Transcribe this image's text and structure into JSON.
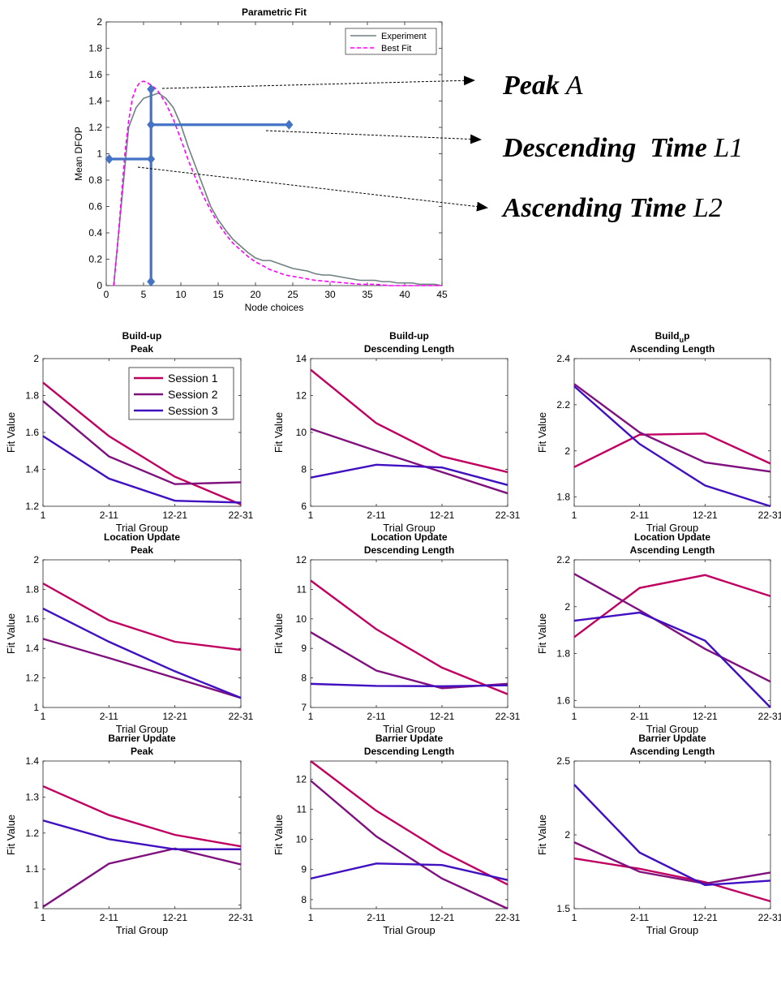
{
  "annotations": [
    {
      "bold": "Peak",
      "rest": "A"
    },
    {
      "bold": "Descending  Time",
      "rest": "L1"
    },
    {
      "bold": "Ascending Time",
      "rest": "L2"
    }
  ],
  "colors": {
    "experiment": "#6e7f80",
    "best_fit": "#ff00ff",
    "marker": "#4472c4",
    "session_1": "#c00060",
    "session_2": "#80107e",
    "session_3": "#4010c0"
  },
  "chart_data": [
    {
      "id": "parametric",
      "type": "line",
      "title": "Parametric Fit",
      "xlabel": "Node choices",
      "ylabel": "Mean DFOP",
      "xlim": [
        0,
        45
      ],
      "ylim": [
        0,
        2
      ],
      "xticks": [
        0,
        5,
        10,
        15,
        20,
        25,
        30,
        35,
        40,
        45
      ],
      "yticks": [
        0,
        0.2,
        0.4,
        0.6,
        0.8,
        1,
        1.2,
        1.4,
        1.6,
        1.8,
        2
      ],
      "ytick_labels": [
        "0",
        "0.2",
        "0.4",
        "0.6",
        "0.8",
        "1",
        "1.2",
        "1.4",
        "1.6",
        "1.8",
        "2"
      ],
      "legend": "top-right",
      "series": [
        {
          "name": "Experiment",
          "style": "solid",
          "x": [
            1,
            2,
            3,
            4,
            5,
            6,
            7,
            8,
            9,
            10,
            11,
            12,
            13,
            14,
            15,
            16,
            17,
            18,
            19,
            20,
            21,
            22,
            23,
            24,
            25,
            26,
            27,
            28,
            29,
            30,
            31,
            32,
            33,
            34,
            35,
            36,
            37,
            38,
            39,
            40,
            41,
            42,
            43,
            44,
            45
          ],
          "y": [
            0.0,
            0.6,
            1.2,
            1.35,
            1.42,
            1.44,
            1.46,
            1.42,
            1.35,
            1.22,
            1.05,
            0.9,
            0.75,
            0.6,
            0.5,
            0.42,
            0.35,
            0.3,
            0.25,
            0.21,
            0.19,
            0.19,
            0.17,
            0.15,
            0.13,
            0.12,
            0.11,
            0.09,
            0.08,
            0.08,
            0.07,
            0.06,
            0.05,
            0.04,
            0.04,
            0.04,
            0.03,
            0.03,
            0.02,
            0.02,
            0.02,
            0.01,
            0.01,
            0.01,
            0.0
          ]
        },
        {
          "name": "Best Fit",
          "style": "dashed",
          "x": [
            1,
            1.5,
            2,
            2.5,
            3,
            3.5,
            4,
            4.5,
            5,
            5.5,
            6,
            6.5,
            7,
            8,
            9,
            10,
            11,
            12,
            13,
            14,
            15,
            16,
            17,
            18,
            19,
            20,
            21,
            22,
            23,
            24,
            25,
            26,
            28,
            30,
            32,
            34,
            36,
            38,
            40,
            42,
            45
          ],
          "y": [
            0.0,
            0.3,
            0.65,
            1.0,
            1.25,
            1.42,
            1.5,
            1.54,
            1.55,
            1.54,
            1.52,
            1.5,
            1.47,
            1.38,
            1.26,
            1.11,
            0.95,
            0.81,
            0.68,
            0.57,
            0.47,
            0.39,
            0.32,
            0.27,
            0.22,
            0.18,
            0.15,
            0.12,
            0.1,
            0.08,
            0.07,
            0.06,
            0.04,
            0.03,
            0.02,
            0.01,
            0.01,
            0.0,
            0.0,
            0.0,
            0.0
          ]
        }
      ],
      "markers": {
        "vertical": {
          "x": 6,
          "y0": 0.03,
          "y1": 1.49
        },
        "descending": {
          "y": 1.22,
          "x0": 6,
          "x1": 24.5
        },
        "ascending": {
          "y": 0.96,
          "x0": 0.4,
          "x1": 6
        }
      }
    },
    {
      "id": "buildup-peak",
      "type": "line",
      "title": [
        "Build-up",
        "Peak"
      ],
      "xlabel": "Trial Group",
      "ylabel": "Fit Value",
      "categories": [
        "1",
        "2-11",
        "12-21",
        "22-31"
      ],
      "ylim": [
        1.2,
        2
      ],
      "yticks": [
        1.2,
        1.4,
        1.6,
        1.8,
        2
      ],
      "ytick_labels": [
        "1.2",
        "1.4",
        "1.6",
        "1.8",
        "2"
      ],
      "legend": "top-right",
      "series": [
        {
          "name": "Session 1",
          "values": [
            1.87,
            1.58,
            1.36,
            1.21
          ]
        },
        {
          "name": "Session 2",
          "values": [
            1.77,
            1.47,
            1.32,
            1.33
          ]
        },
        {
          "name": "Session 3",
          "values": [
            1.58,
            1.35,
            1.23,
            1.22
          ]
        }
      ]
    },
    {
      "id": "buildup-desc",
      "type": "line",
      "title": [
        "Build-up",
        "Descending Length"
      ],
      "xlabel": "Trial Group",
      "ylabel": "Fit Value",
      "categories": [
        "1",
        "2-11",
        "12-21",
        "22-31"
      ],
      "ylim": [
        6,
        14
      ],
      "yticks": [
        6,
        8,
        10,
        12,
        14
      ],
      "ytick_labels": [
        "6",
        "8",
        "10",
        "12",
        "14"
      ],
      "series": [
        {
          "values": [
            13.4,
            10.5,
            8.7,
            7.85
          ]
        },
        {
          "values": [
            10.2,
            9.0,
            7.85,
            6.7
          ]
        },
        {
          "values": [
            7.55,
            8.25,
            8.1,
            7.15
          ]
        }
      ]
    },
    {
      "id": "buildup-asc",
      "type": "line",
      "title": [
        "Build",
        "u",
        "p",
        "Ascending Length"
      ],
      "xlabel": "Trial Group",
      "ylabel": "Fit Value",
      "categories": [
        "1",
        "2-11",
        "12-21",
        "22-31"
      ],
      "ylim": [
        1.76,
        2.4
      ],
      "yticks": [
        1.8,
        2.0,
        2.2,
        2.4
      ],
      "ytick_labels": [
        "1.8",
        "2",
        "2.2",
        "2.4"
      ],
      "series": [
        {
          "values": [
            1.93,
            2.07,
            2.075,
            1.945
          ]
        },
        {
          "values": [
            2.29,
            2.08,
            1.95,
            1.91
          ]
        },
        {
          "values": [
            2.28,
            2.03,
            1.85,
            1.76
          ]
        }
      ]
    },
    {
      "id": "location-peak",
      "type": "line",
      "title": [
        "Location Update",
        "Peak"
      ],
      "xlabel": "Trial Group",
      "ylabel": "Fit Value",
      "categories": [
        "1",
        "2-11",
        "12-21",
        "22-31"
      ],
      "ylim": [
        1,
        2
      ],
      "yticks": [
        1,
        1.2,
        1.4,
        1.6,
        1.8,
        2
      ],
      "ytick_labels": [
        "1",
        "1.2",
        "1.4",
        "1.6",
        "1.8",
        "2"
      ],
      "series": [
        {
          "values": [
            1.84,
            1.59,
            1.445,
            1.39
          ]
        },
        {
          "values": [
            1.465,
            1.335,
            1.2,
            1.065
          ]
        },
        {
          "values": [
            1.67,
            1.445,
            1.245,
            1.065
          ]
        }
      ]
    },
    {
      "id": "location-desc",
      "type": "line",
      "title": [
        "Location Update",
        "Descending Length"
      ],
      "xlabel": "Trial Group",
      "ylabel": "Fit Value",
      "categories": [
        "1",
        "2-11",
        "12-21",
        "22-31"
      ],
      "ylim": [
        7,
        12
      ],
      "yticks": [
        7,
        8,
        9,
        10,
        11,
        12
      ],
      "ytick_labels": [
        "7",
        "8",
        "9",
        "10",
        "11",
        "12"
      ],
      "series": [
        {
          "values": [
            11.3,
            9.65,
            8.35,
            7.45
          ]
        },
        {
          "values": [
            9.55,
            8.25,
            7.65,
            7.8
          ]
        },
        {
          "values": [
            7.8,
            7.73,
            7.72,
            7.75
          ]
        }
      ]
    },
    {
      "id": "location-asc",
      "type": "line",
      "title": [
        "Location Update",
        "Ascending Length"
      ],
      "xlabel": "Trial Group",
      "ylabel": "Fit Value",
      "categories": [
        "1",
        "2-11",
        "12-21",
        "22-31"
      ],
      "ylim": [
        1.57,
        2.2
      ],
      "yticks": [
        1.6,
        1.8,
        2.0,
        2.2
      ],
      "ytick_labels": [
        "1.6",
        "1.8",
        "2",
        "2.2"
      ],
      "series": [
        {
          "values": [
            1.87,
            2.08,
            2.135,
            2.045
          ]
        },
        {
          "values": [
            2.14,
            1.985,
            1.82,
            1.68
          ]
        },
        {
          "values": [
            1.94,
            1.975,
            1.855,
            1.57
          ]
        }
      ]
    },
    {
      "id": "barrier-peak",
      "type": "line",
      "title": [
        "Barrier Update",
        "Peak"
      ],
      "xlabel": "Trial Group",
      "ylabel": "Fit Value",
      "categories": [
        "1",
        "2-11",
        "12-21",
        "22-31"
      ],
      "ylim": [
        0.99,
        1.4
      ],
      "yticks": [
        1.0,
        1.1,
        1.2,
        1.3,
        1.4
      ],
      "ytick_labels": [
        "1",
        "1.1",
        "1.2",
        "1.3",
        "1.4"
      ],
      "series": [
        {
          "values": [
            1.33,
            1.25,
            1.195,
            1.163
          ]
        },
        {
          "values": [
            0.995,
            1.115,
            1.157,
            1.113
          ]
        },
        {
          "values": [
            1.235,
            1.183,
            1.155,
            1.155
          ]
        }
      ]
    },
    {
      "id": "barrier-desc",
      "type": "line",
      "title": [
        "Barrier Update",
        "Descending Length"
      ],
      "xlabel": "Trial Group",
      "ylabel": "Fit Value",
      "categories": [
        "1",
        "2-11",
        "12-21",
        "22-31"
      ],
      "ylim": [
        7.7,
        12.6
      ],
      "yticks": [
        8,
        9,
        10,
        11,
        12
      ],
      "ytick_labels": [
        "8",
        "9",
        "10",
        "11",
        "12"
      ],
      "series": [
        {
          "values": [
            12.6,
            10.95,
            9.6,
            8.5
          ]
        },
        {
          "values": [
            11.95,
            10.1,
            8.7,
            7.7
          ]
        },
        {
          "values": [
            8.7,
            9.2,
            9.15,
            8.65
          ]
        }
      ]
    },
    {
      "id": "barrier-asc",
      "type": "line",
      "title": [
        "Barrier Update",
        "Ascending Length"
      ],
      "xlabel": "Trial Group",
      "ylabel": "Fit Value",
      "categories": [
        "1",
        "2-11",
        "12-21",
        "22-31"
      ],
      "ylim": [
        1.5,
        2.5
      ],
      "yticks": [
        1.5,
        2.0,
        2.5
      ],
      "ytick_labels": [
        "1.5",
        "2",
        "2.5"
      ],
      "series": [
        {
          "values": [
            1.84,
            1.77,
            1.68,
            1.55
          ]
        },
        {
          "values": [
            1.95,
            1.75,
            1.67,
            1.745
          ]
        },
        {
          "values": [
            2.34,
            1.88,
            1.66,
            1.69
          ]
        }
      ]
    }
  ]
}
